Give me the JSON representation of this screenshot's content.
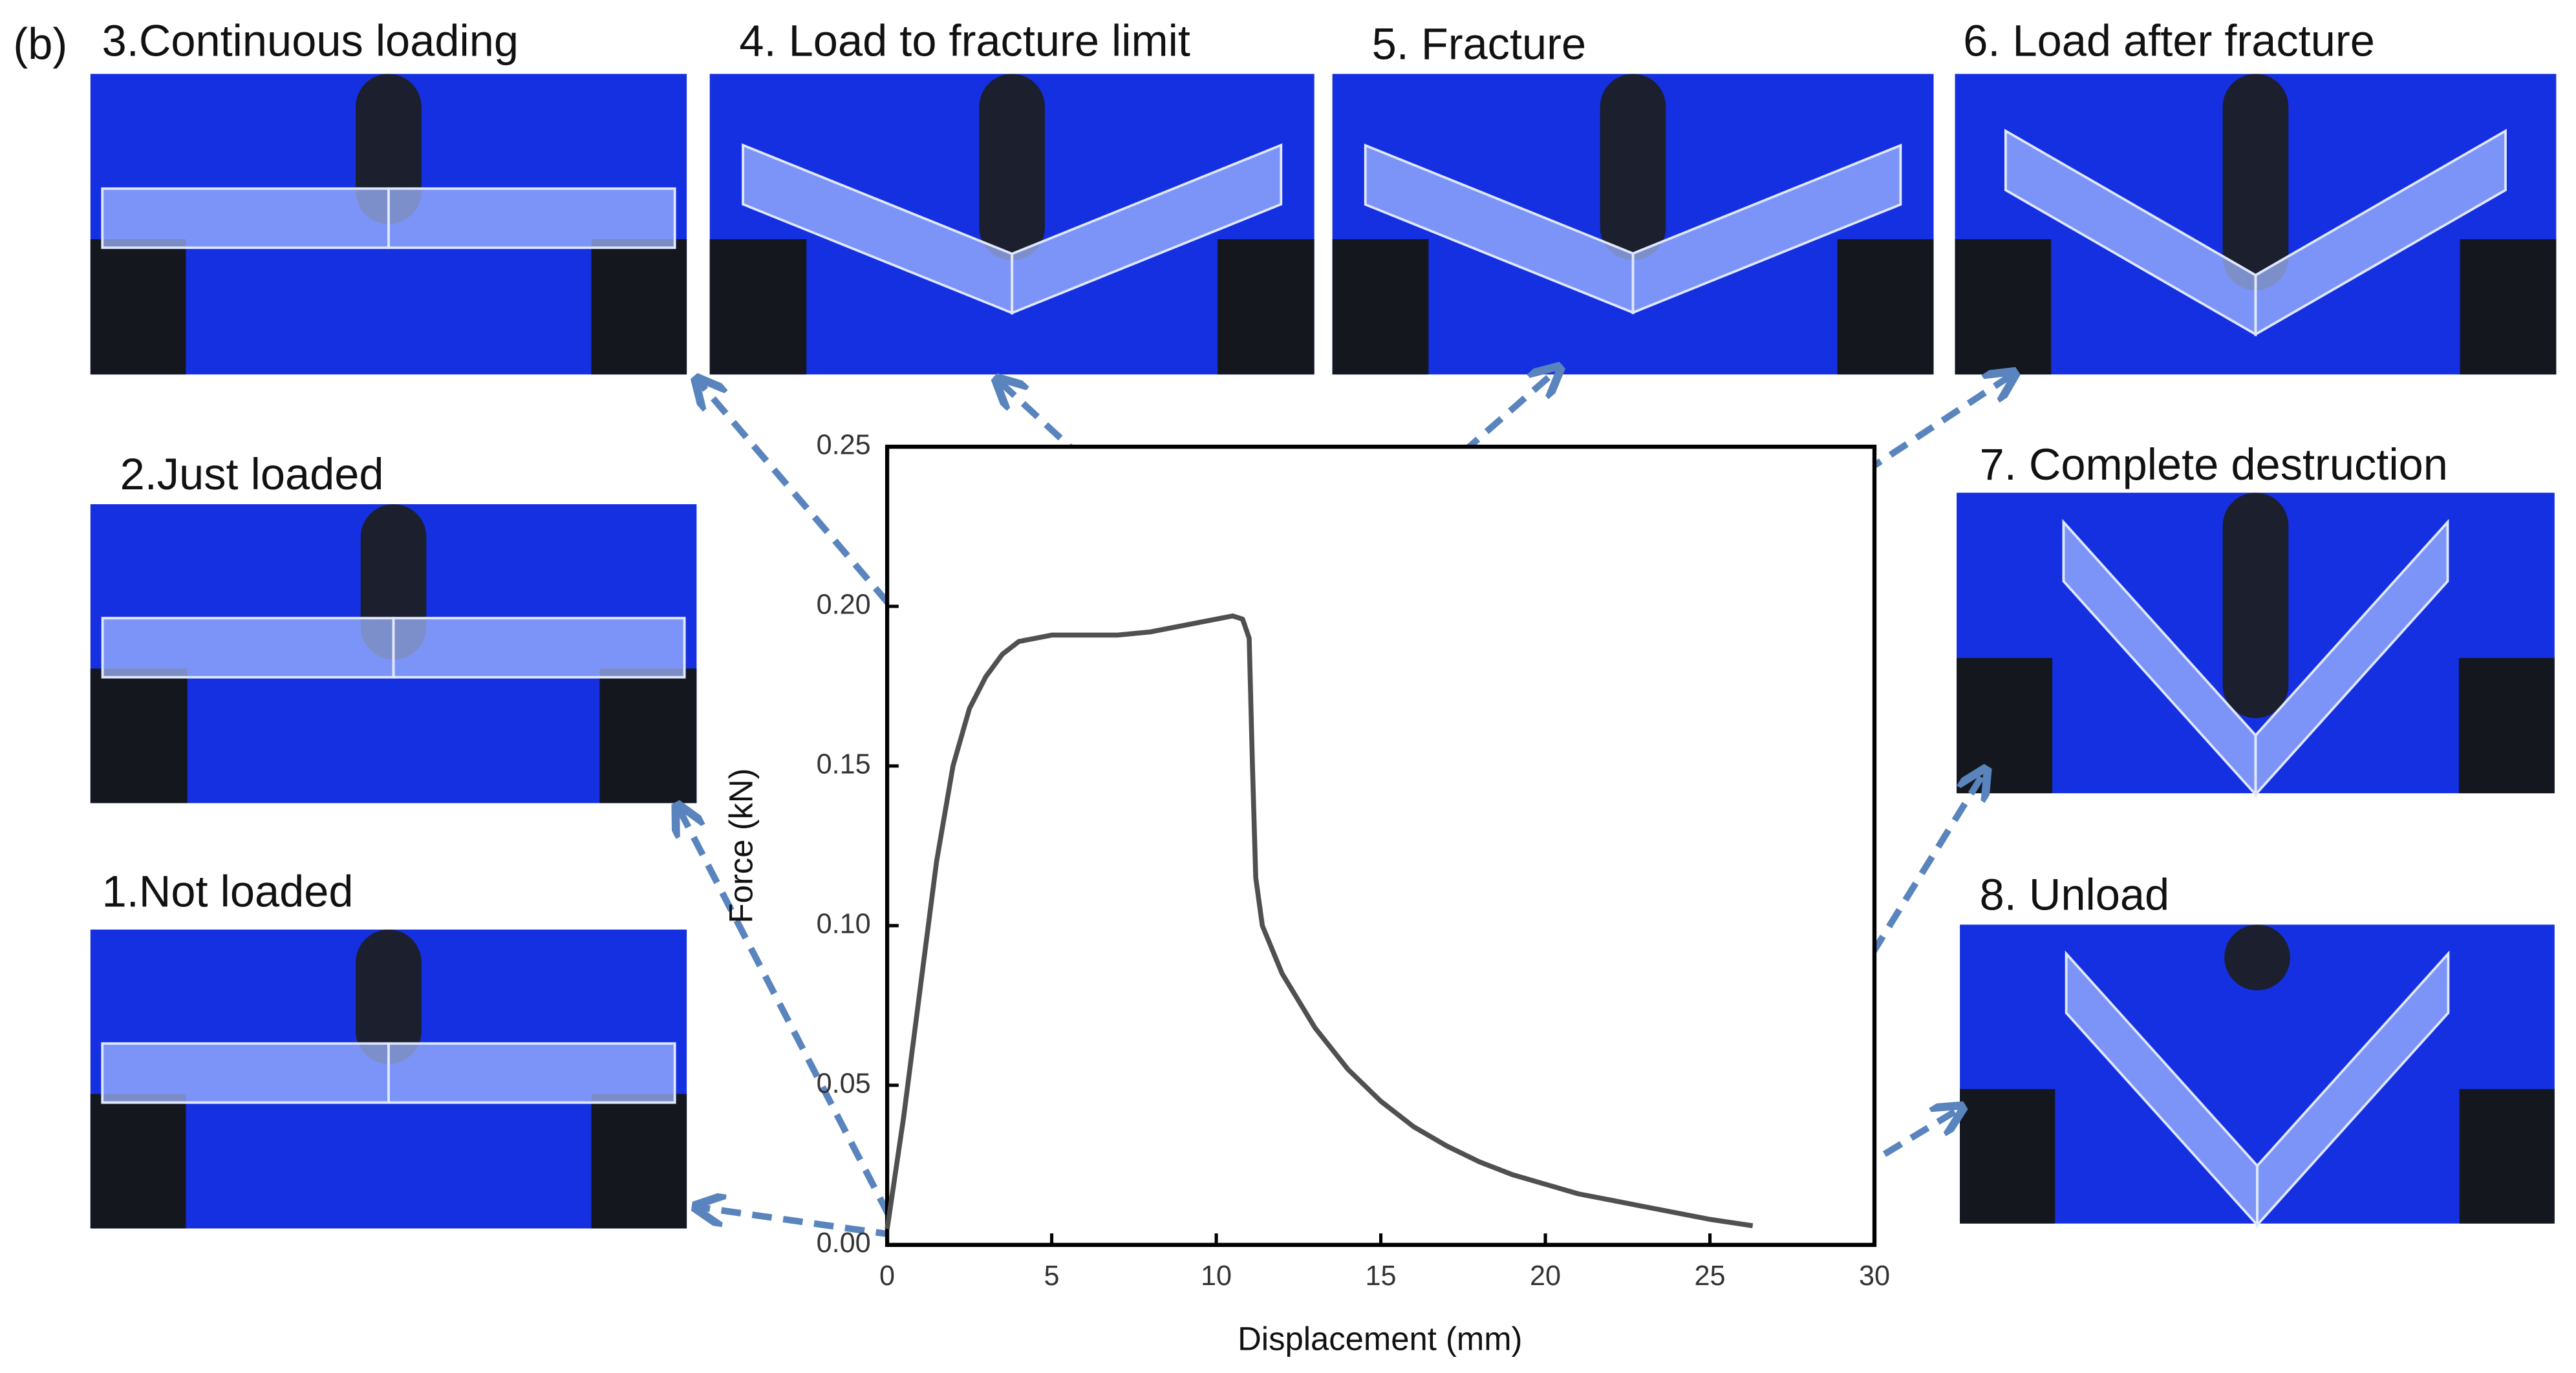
{
  "chart_data": {
    "type": "line",
    "panel_label": "(b)",
    "xlabel": "Displacement (mm)",
    "ylabel": "Force (kN)",
    "x": [
      0,
      0.5,
      1,
      1.5,
      2,
      2.5,
      3,
      3.5,
      4,
      5,
      6,
      7,
      8,
      9,
      10,
      10.5,
      10.8,
      11,
      11.1,
      11.2,
      11.4,
      12,
      13,
      14,
      15,
      16,
      17,
      18,
      19,
      20,
      21,
      22,
      23,
      24,
      25,
      26.3
    ],
    "values": [
      0.005,
      0.04,
      0.08,
      0.12,
      0.15,
      0.168,
      0.178,
      0.185,
      0.189,
      0.191,
      0.191,
      0.191,
      0.192,
      0.194,
      0.196,
      0.197,
      0.196,
      0.19,
      0.15,
      0.115,
      0.1,
      0.085,
      0.068,
      0.055,
      0.045,
      0.037,
      0.031,
      0.026,
      0.022,
      0.019,
      0.016,
      0.014,
      0.012,
      0.01,
      0.008,
      0.006
    ],
    "color": "#505050",
    "xlim": [
      0,
      30
    ],
    "xticks": [
      0,
      5,
      10,
      15,
      20,
      25,
      30
    ],
    "ylim": [
      0,
      0.25
    ],
    "yticks": [
      {
        "value": 0,
        "label": "0.00"
      },
      {
        "value": 0.05,
        "label": "0.05"
      },
      {
        "value": 0.1,
        "label": "0.10"
      },
      {
        "value": 0.15,
        "label": "0.15"
      },
      {
        "value": 0.2,
        "label": "0.20"
      },
      {
        "value": 0.25,
        "label": "0.25"
      }
    ],
    "annotations": [
      "1.Not loaded",
      "2.Just loaded",
      "3.Continuous loading",
      "4. Load to fracture limit",
      "5. Fracture",
      "6. Load after fracture",
      "7. Complete destruction",
      "8. Unload"
    ]
  }
}
